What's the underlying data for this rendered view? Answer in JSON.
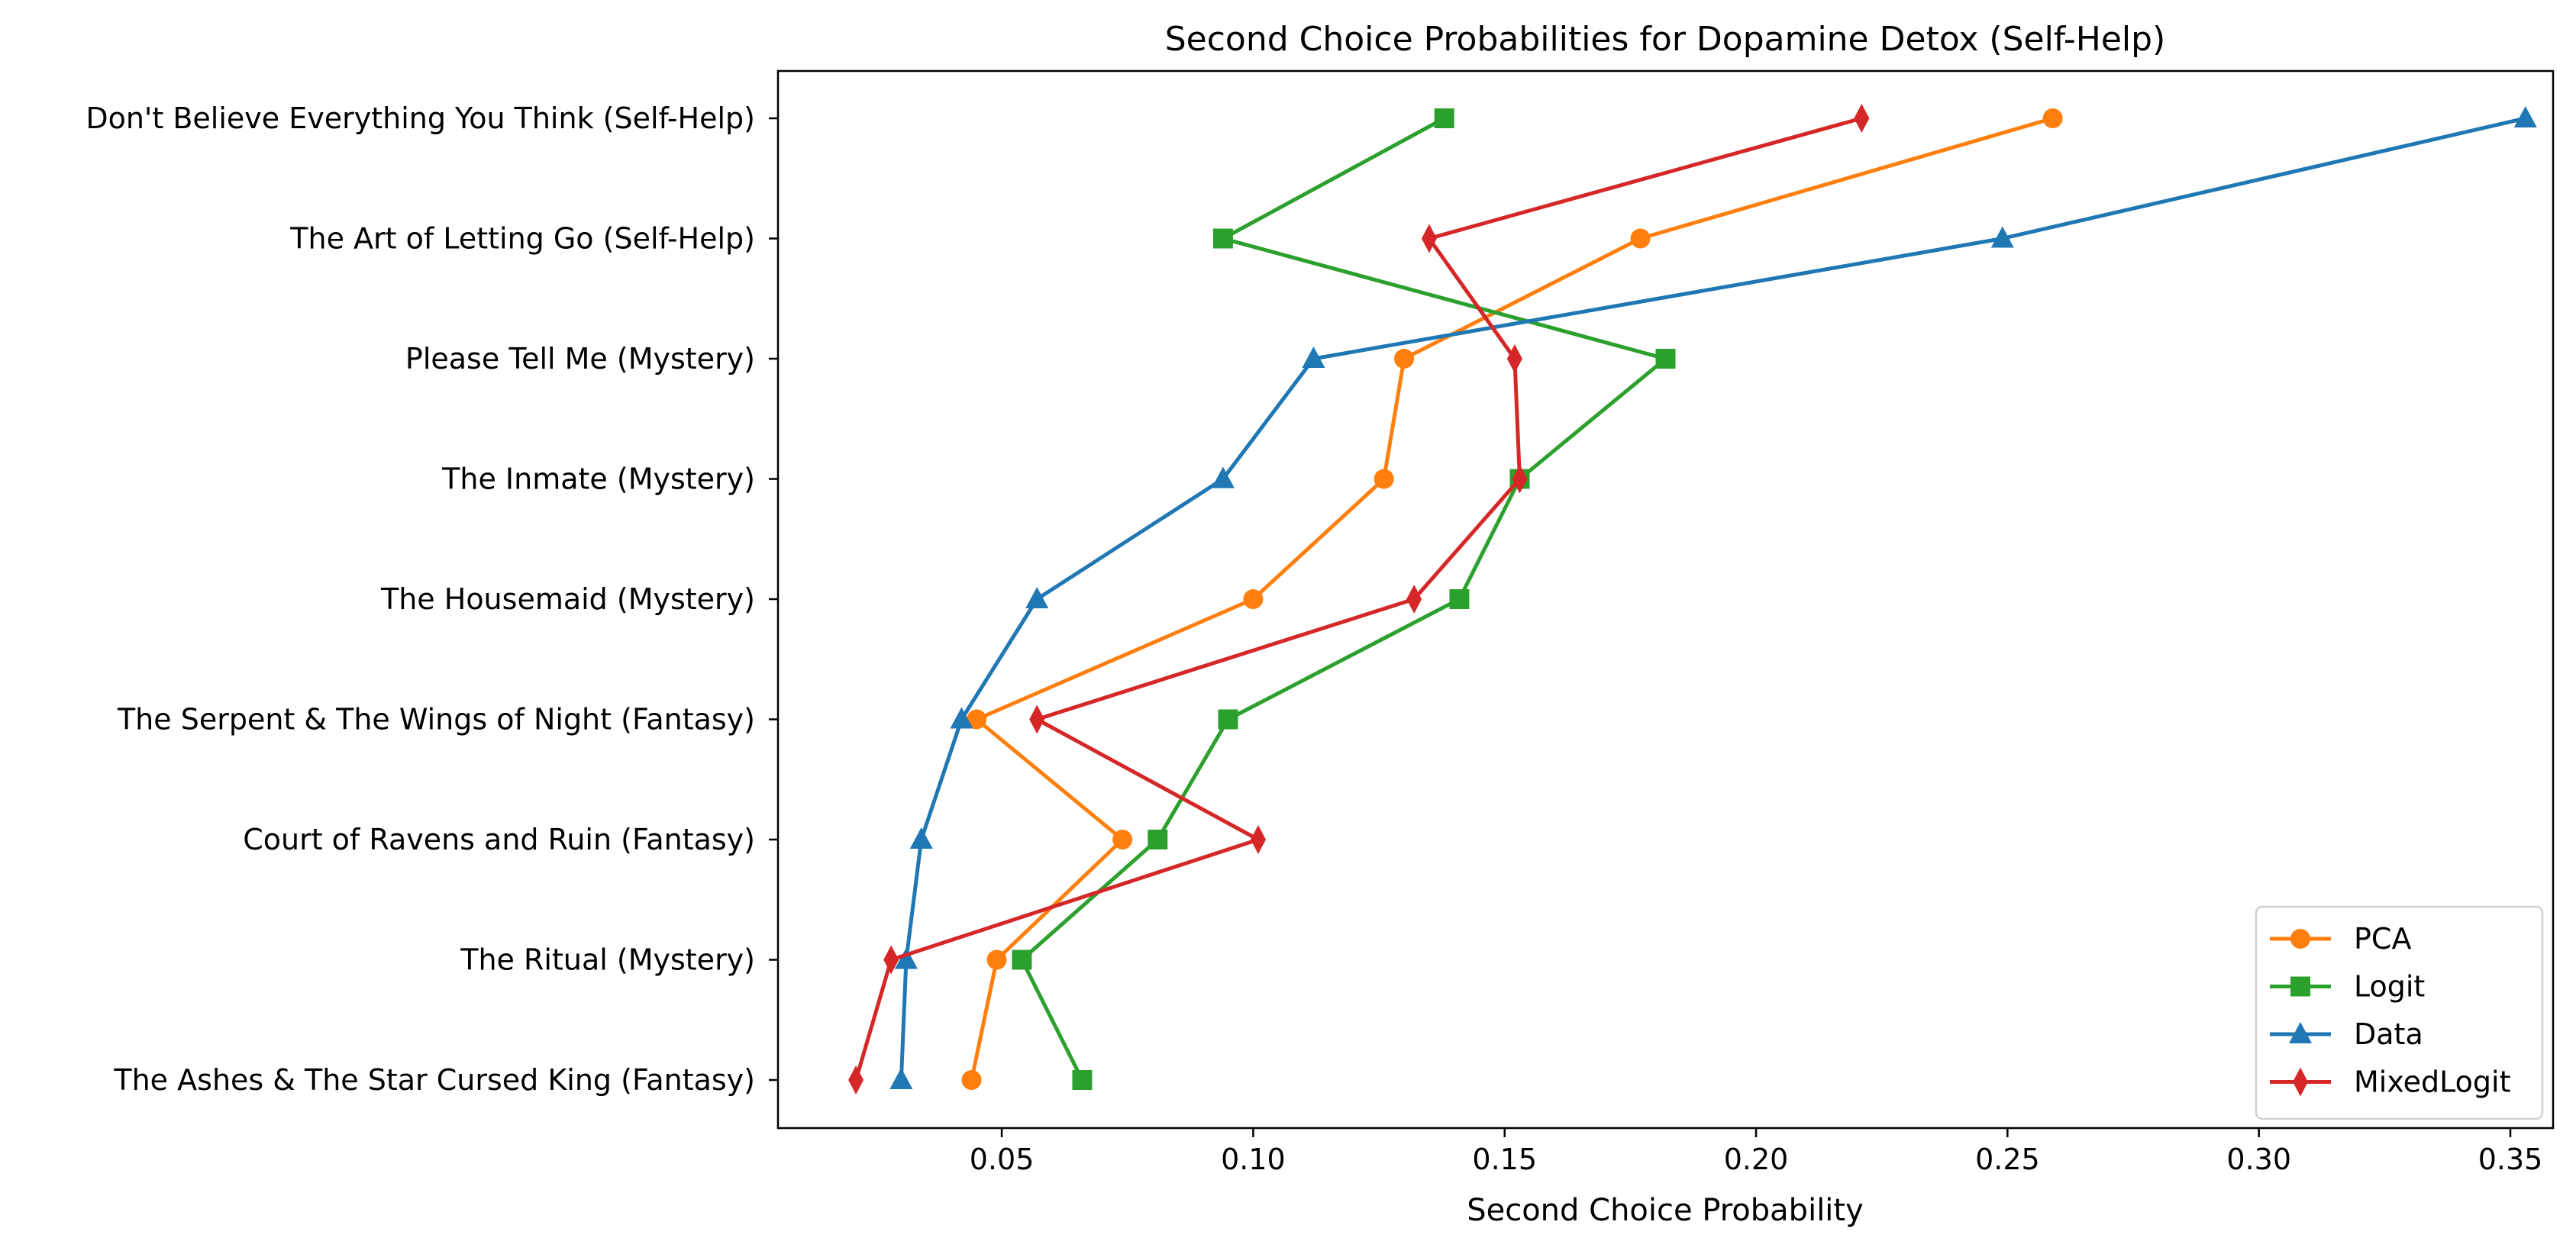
{
  "chart_data": {
    "type": "line",
    "title": "Second Choice Probabilities for Dopamine Detox (Self-Help)",
    "xlabel": "Second Choice Probability",
    "ylabel": "",
    "xlim": [
      0.0055,
      0.3585
    ],
    "x_ticks": [
      0.05,
      0.1,
      0.15,
      0.2,
      0.25,
      0.3,
      0.35
    ],
    "x_tick_labels": [
      "0.05",
      "0.10",
      "0.15",
      "0.20",
      "0.25",
      "0.30",
      "0.35"
    ],
    "categories": [
      "Don't Believe Everything You Think (Self-Help)",
      "The Art of Letting Go (Self-Help)",
      "Please Tell Me (Mystery)",
      "The Inmate (Mystery)",
      "The Housemaid (Mystery)",
      "The Serpent & The Wings of Night (Fantasy)",
      "Court of Ravens and Ruin (Fantasy)",
      "The Ritual (Mystery)",
      "The Ashes & The Star Cursed King (Fantasy)"
    ],
    "grid": false,
    "legend_position": "lower-right",
    "series": [
      {
        "name": "PCA",
        "color": "#ff7f0e",
        "marker": "circle",
        "values": [
          0.259,
          0.177,
          0.13,
          0.126,
          0.1,
          0.045,
          0.074,
          0.049,
          0.044
        ]
      },
      {
        "name": "Logit",
        "color": "#2ca02c",
        "marker": "square",
        "values": [
          0.138,
          0.094,
          0.182,
          0.153,
          0.141,
          0.095,
          0.081,
          0.054,
          0.066
        ]
      },
      {
        "name": "Data",
        "color": "#1f77b4",
        "marker": "triangle",
        "values": [
          0.353,
          0.249,
          0.112,
          0.094,
          0.057,
          0.042,
          0.034,
          0.031,
          0.03
        ]
      },
      {
        "name": "MixedLogit",
        "color": "#d62728",
        "marker": "diamond",
        "values": [
          0.221,
          0.135,
          0.152,
          0.153,
          0.132,
          0.057,
          0.101,
          0.028,
          0.021
        ]
      }
    ]
  }
}
